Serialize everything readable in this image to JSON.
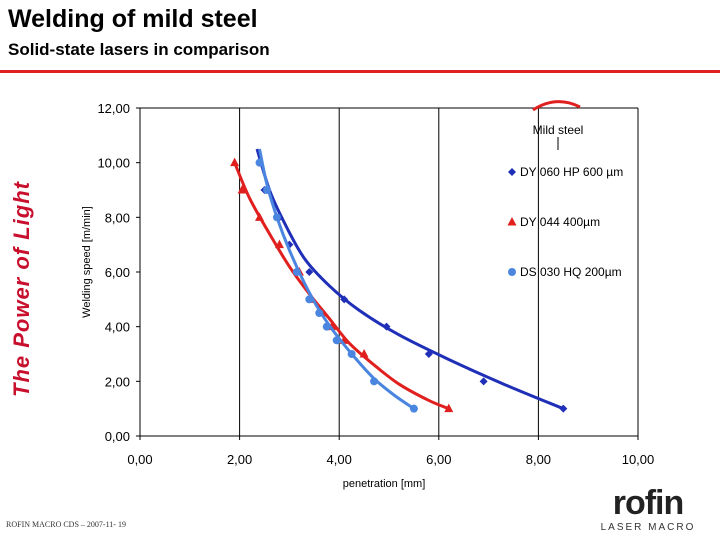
{
  "slide": {
    "title": "Welding of mild steel",
    "subtitle": "Solid-state lasers in comparison",
    "side_brand": "The Power of Light",
    "footer": "ROFIN MACRO CDS – 2007-11- 19",
    "logo_word": "rofin",
    "logo_tagline": "LASER MACRO",
    "accent_color": "#e0201e"
  },
  "chart_data": {
    "type": "scatter",
    "title": "",
    "xlabel": "penetration [mm]",
    "ylabel": "Welding speed [m/min]",
    "xlim": [
      0,
      10
    ],
    "ylim": [
      0,
      12
    ],
    "xticks": [
      0,
      2,
      4,
      6,
      8,
      10
    ],
    "yticks": [
      0,
      2,
      4,
      6,
      8,
      10,
      12
    ],
    "xtick_labels": [
      "0,00",
      "2,00",
      "4,00",
      "6,00",
      "8,00",
      "10,00"
    ],
    "ytick_labels": [
      "0,00",
      "2,00",
      "4,00",
      "6,00",
      "8,00",
      "10,00",
      "12,00"
    ],
    "grid": "vertical",
    "legend_position": "right",
    "annotation": "Mild steel",
    "series": [
      {
        "name": "DY 060 HP 600 µm",
        "marker": "diamond",
        "color": "#1f2fb8",
        "points": [
          [
            2.5,
            9.0
          ],
          [
            2.8,
            8.0
          ],
          [
            3.0,
            7.0
          ],
          [
            3.4,
            6.0
          ],
          [
            4.1,
            5.0
          ],
          [
            4.95,
            4.0
          ],
          [
            5.8,
            3.0
          ],
          [
            6.9,
            2.0
          ],
          [
            8.5,
            1.0
          ]
        ],
        "trend": [
          [
            2.35,
            10.5
          ],
          [
            2.6,
            9.0
          ],
          [
            2.9,
            7.8
          ],
          [
            3.3,
            6.5
          ],
          [
            3.8,
            5.5
          ],
          [
            4.4,
            4.6
          ],
          [
            5.2,
            3.7
          ],
          [
            6.2,
            2.8
          ],
          [
            7.3,
            1.9
          ],
          [
            8.5,
            1.0
          ]
        ]
      },
      {
        "name": "DY 044 400µm",
        "marker": "triangle",
        "color": "#e0201e",
        "points": [
          [
            1.9,
            10.0
          ],
          [
            2.05,
            9.0
          ],
          [
            2.4,
            8.0
          ],
          [
            2.8,
            7.0
          ],
          [
            3.2,
            6.0
          ],
          [
            3.45,
            5.0
          ],
          [
            3.65,
            4.5
          ],
          [
            3.85,
            4.0
          ],
          [
            4.1,
            3.5
          ],
          [
            4.5,
            3.0
          ],
          [
            6.2,
            1.0
          ]
        ],
        "trend": [
          [
            1.9,
            10.0
          ],
          [
            2.2,
            8.7
          ],
          [
            2.6,
            7.4
          ],
          [
            3.0,
            6.2
          ],
          [
            3.4,
            5.2
          ],
          [
            3.8,
            4.3
          ],
          [
            4.2,
            3.4
          ],
          [
            4.7,
            2.6
          ],
          [
            5.2,
            1.9
          ],
          [
            5.8,
            1.3
          ],
          [
            6.2,
            1.0
          ]
        ]
      },
      {
        "name": "DS 030 HQ 200µm",
        "marker": "circle",
        "color": "#4a86e0",
        "points": [
          [
            2.4,
            10.0
          ],
          [
            2.55,
            9.0
          ],
          [
            2.75,
            8.0
          ],
          [
            3.15,
            6.0
          ],
          [
            3.4,
            5.0
          ],
          [
            3.6,
            4.5
          ],
          [
            3.75,
            4.0
          ],
          [
            3.95,
            3.5
          ],
          [
            4.25,
            3.0
          ],
          [
            4.7,
            2.0
          ],
          [
            5.5,
            1.0
          ]
        ],
        "trend": [
          [
            2.4,
            10.5
          ],
          [
            2.55,
            9.2
          ],
          [
            2.75,
            8.0
          ],
          [
            3.0,
            6.8
          ],
          [
            3.3,
            5.6
          ],
          [
            3.6,
            4.6
          ],
          [
            3.9,
            3.8
          ],
          [
            4.3,
            2.9
          ],
          [
            4.7,
            2.1
          ],
          [
            5.1,
            1.5
          ],
          [
            5.5,
            1.0
          ]
        ]
      }
    ]
  }
}
